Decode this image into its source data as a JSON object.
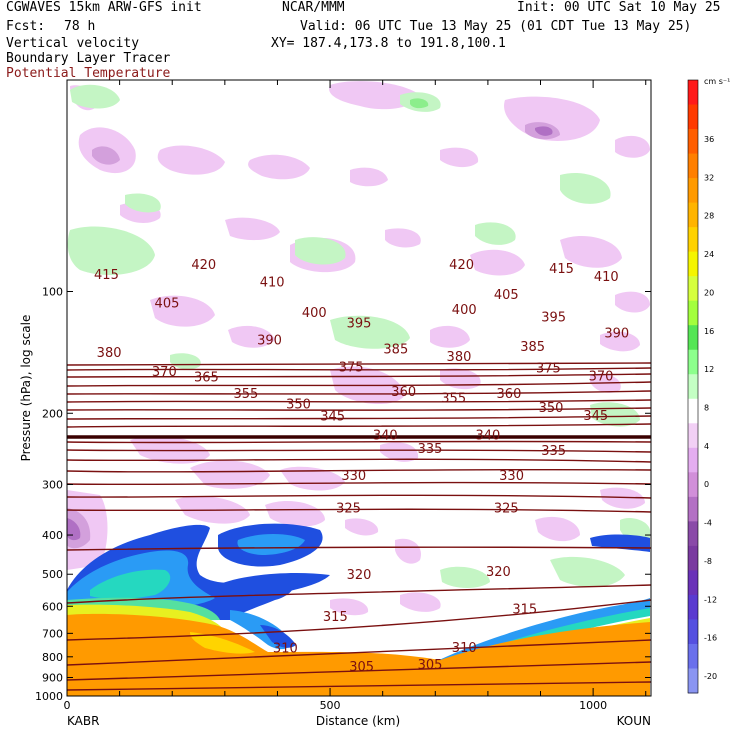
{
  "header": {
    "model": "CGWAVES 15km ARW-GFS init",
    "center": "NCAR/MMM",
    "init": "Init: 00 UTC Sat 10 May 25",
    "fcst_label": "Fcst:",
    "fcst_value": "78 h",
    "valid": "Valid: 06 UTC Tue 13 May 25 (01 CDT Tue 13 May 25)",
    "field1": "Vertical velocity",
    "xy": "XY= 187.4,173.8 to 191.8,100.1",
    "field2": "Boundary Layer Tracer",
    "field3": "Potential Temperature",
    "field3_color": "#8b1a1a"
  },
  "chart_data": {
    "type": "cross-section",
    "xlabel": "Distance (km)",
    "ylabel": "Pressure (hPa), log scale",
    "x_ticks": [
      "0",
      "500",
      "1000"
    ],
    "x_tick_values": [
      0,
      500,
      1000
    ],
    "xlim": [
      0,
      1110
    ],
    "y_ticks": [
      "100",
      "200",
      "300",
      "400",
      "500",
      "600",
      "700",
      "800",
      "900",
      "1000"
    ],
    "y_tick_values": [
      100,
      200,
      300,
      400,
      500,
      600,
      700,
      800,
      900,
      1000
    ],
    "ylim": [
      1000,
      30
    ],
    "y_scale": "log",
    "left_station": "KABR",
    "right_station": "KOUN",
    "colorbar": {
      "unit": "cm s⁻¹",
      "tick_labels": [
        "36",
        "32",
        "28",
        "24",
        "20",
        "16",
        "12",
        "8",
        "4",
        "0",
        "-4",
        "-8",
        "-12",
        "-16",
        "-20"
      ],
      "colors": [
        "#ff1a1a",
        "#ff3a00",
        "#ff5e00",
        "#ff7f00",
        "#ff9a00",
        "#ffb400",
        "#ffd200",
        "#f5f500",
        "#d6ff3d",
        "#a3ff3d",
        "#55e655",
        "#8cff8c",
        "#c4ffc4",
        "#ffffff",
        "#f2d0f5",
        "#e4adf0",
        "#d18fd9",
        "#b370c4",
        "#8a4aa8",
        "#7a3aa0",
        "#6a32b8",
        "#5a3ad0",
        "#5550e0",
        "#6a70ec",
        "#8a95f2"
      ]
    },
    "theta_labels": [
      {
        "value": "420",
        "x": 260,
        "p": 86
      },
      {
        "value": "420",
        "x": 750,
        "p": 86
      },
      {
        "value": "415",
        "x": 75,
        "p": 91
      },
      {
        "value": "415",
        "x": 940,
        "p": 88
      },
      {
        "value": "410",
        "x": 390,
        "p": 95
      },
      {
        "value": "410",
        "x": 1025,
        "p": 92
      },
      {
        "value": "405",
        "x": 190,
        "p": 107
      },
      {
        "value": "405",
        "x": 835,
        "p": 102
      },
      {
        "value": "400",
        "x": 470,
        "p": 113
      },
      {
        "value": "400",
        "x": 755,
        "p": 111
      },
      {
        "value": "395",
        "x": 555,
        "p": 120
      },
      {
        "value": "395",
        "x": 925,
        "p": 116
      },
      {
        "value": "390",
        "x": 385,
        "p": 132
      },
      {
        "value": "390",
        "x": 1045,
        "p": 127
      },
      {
        "value": "385",
        "x": 625,
        "p": 139
      },
      {
        "value": "385",
        "x": 885,
        "p": 137
      },
      {
        "value": "380",
        "x": 80,
        "p": 142
      },
      {
        "value": "380",
        "x": 745,
        "p": 145
      },
      {
        "value": "375",
        "x": 540,
        "p": 154
      },
      {
        "value": "375",
        "x": 915,
        "p": 155
      },
      {
        "value": "370",
        "x": 185,
        "p": 158
      },
      {
        "value": "370",
        "x": 1015,
        "p": 162
      },
      {
        "value": "365",
        "x": 265,
        "p": 163
      },
      {
        "value": "360",
        "x": 640,
        "p": 177
      },
      {
        "value": "360",
        "x": 840,
        "p": 179
      },
      {
        "value": "355",
        "x": 340,
        "p": 179
      },
      {
        "value": "355",
        "x": 735,
        "p": 184
      },
      {
        "value": "350",
        "x": 440,
        "p": 190
      },
      {
        "value": "350",
        "x": 920,
        "p": 194
      },
      {
        "value": "345",
        "x": 505,
        "p": 204
      },
      {
        "value": "345",
        "x": 1005,
        "p": 203
      },
      {
        "value": "340",
        "x": 605,
        "p": 227
      },
      {
        "value": "340",
        "x": 800,
        "p": 227
      },
      {
        "value": "335",
        "x": 690,
        "p": 245
      },
      {
        "value": "335",
        "x": 925,
        "p": 248
      },
      {
        "value": "330",
        "x": 545,
        "p": 286
      },
      {
        "value": "330",
        "x": 845,
        "p": 286
      },
      {
        "value": "325",
        "x": 535,
        "p": 344
      },
      {
        "value": "325",
        "x": 835,
        "p": 344
      },
      {
        "value": "320",
        "x": 555,
        "p": 502
      },
      {
        "value": "320",
        "x": 820,
        "p": 494
      },
      {
        "value": "315",
        "x": 510,
        "p": 637
      },
      {
        "value": "315",
        "x": 870,
        "p": 611
      },
      {
        "value": "310",
        "x": 415,
        "p": 764
      },
      {
        "value": "310",
        "x": 755,
        "p": 760
      },
      {
        "value": "305",
        "x": 560,
        "p": 849
      },
      {
        "value": "305",
        "x": 690,
        "p": 839
      }
    ]
  }
}
